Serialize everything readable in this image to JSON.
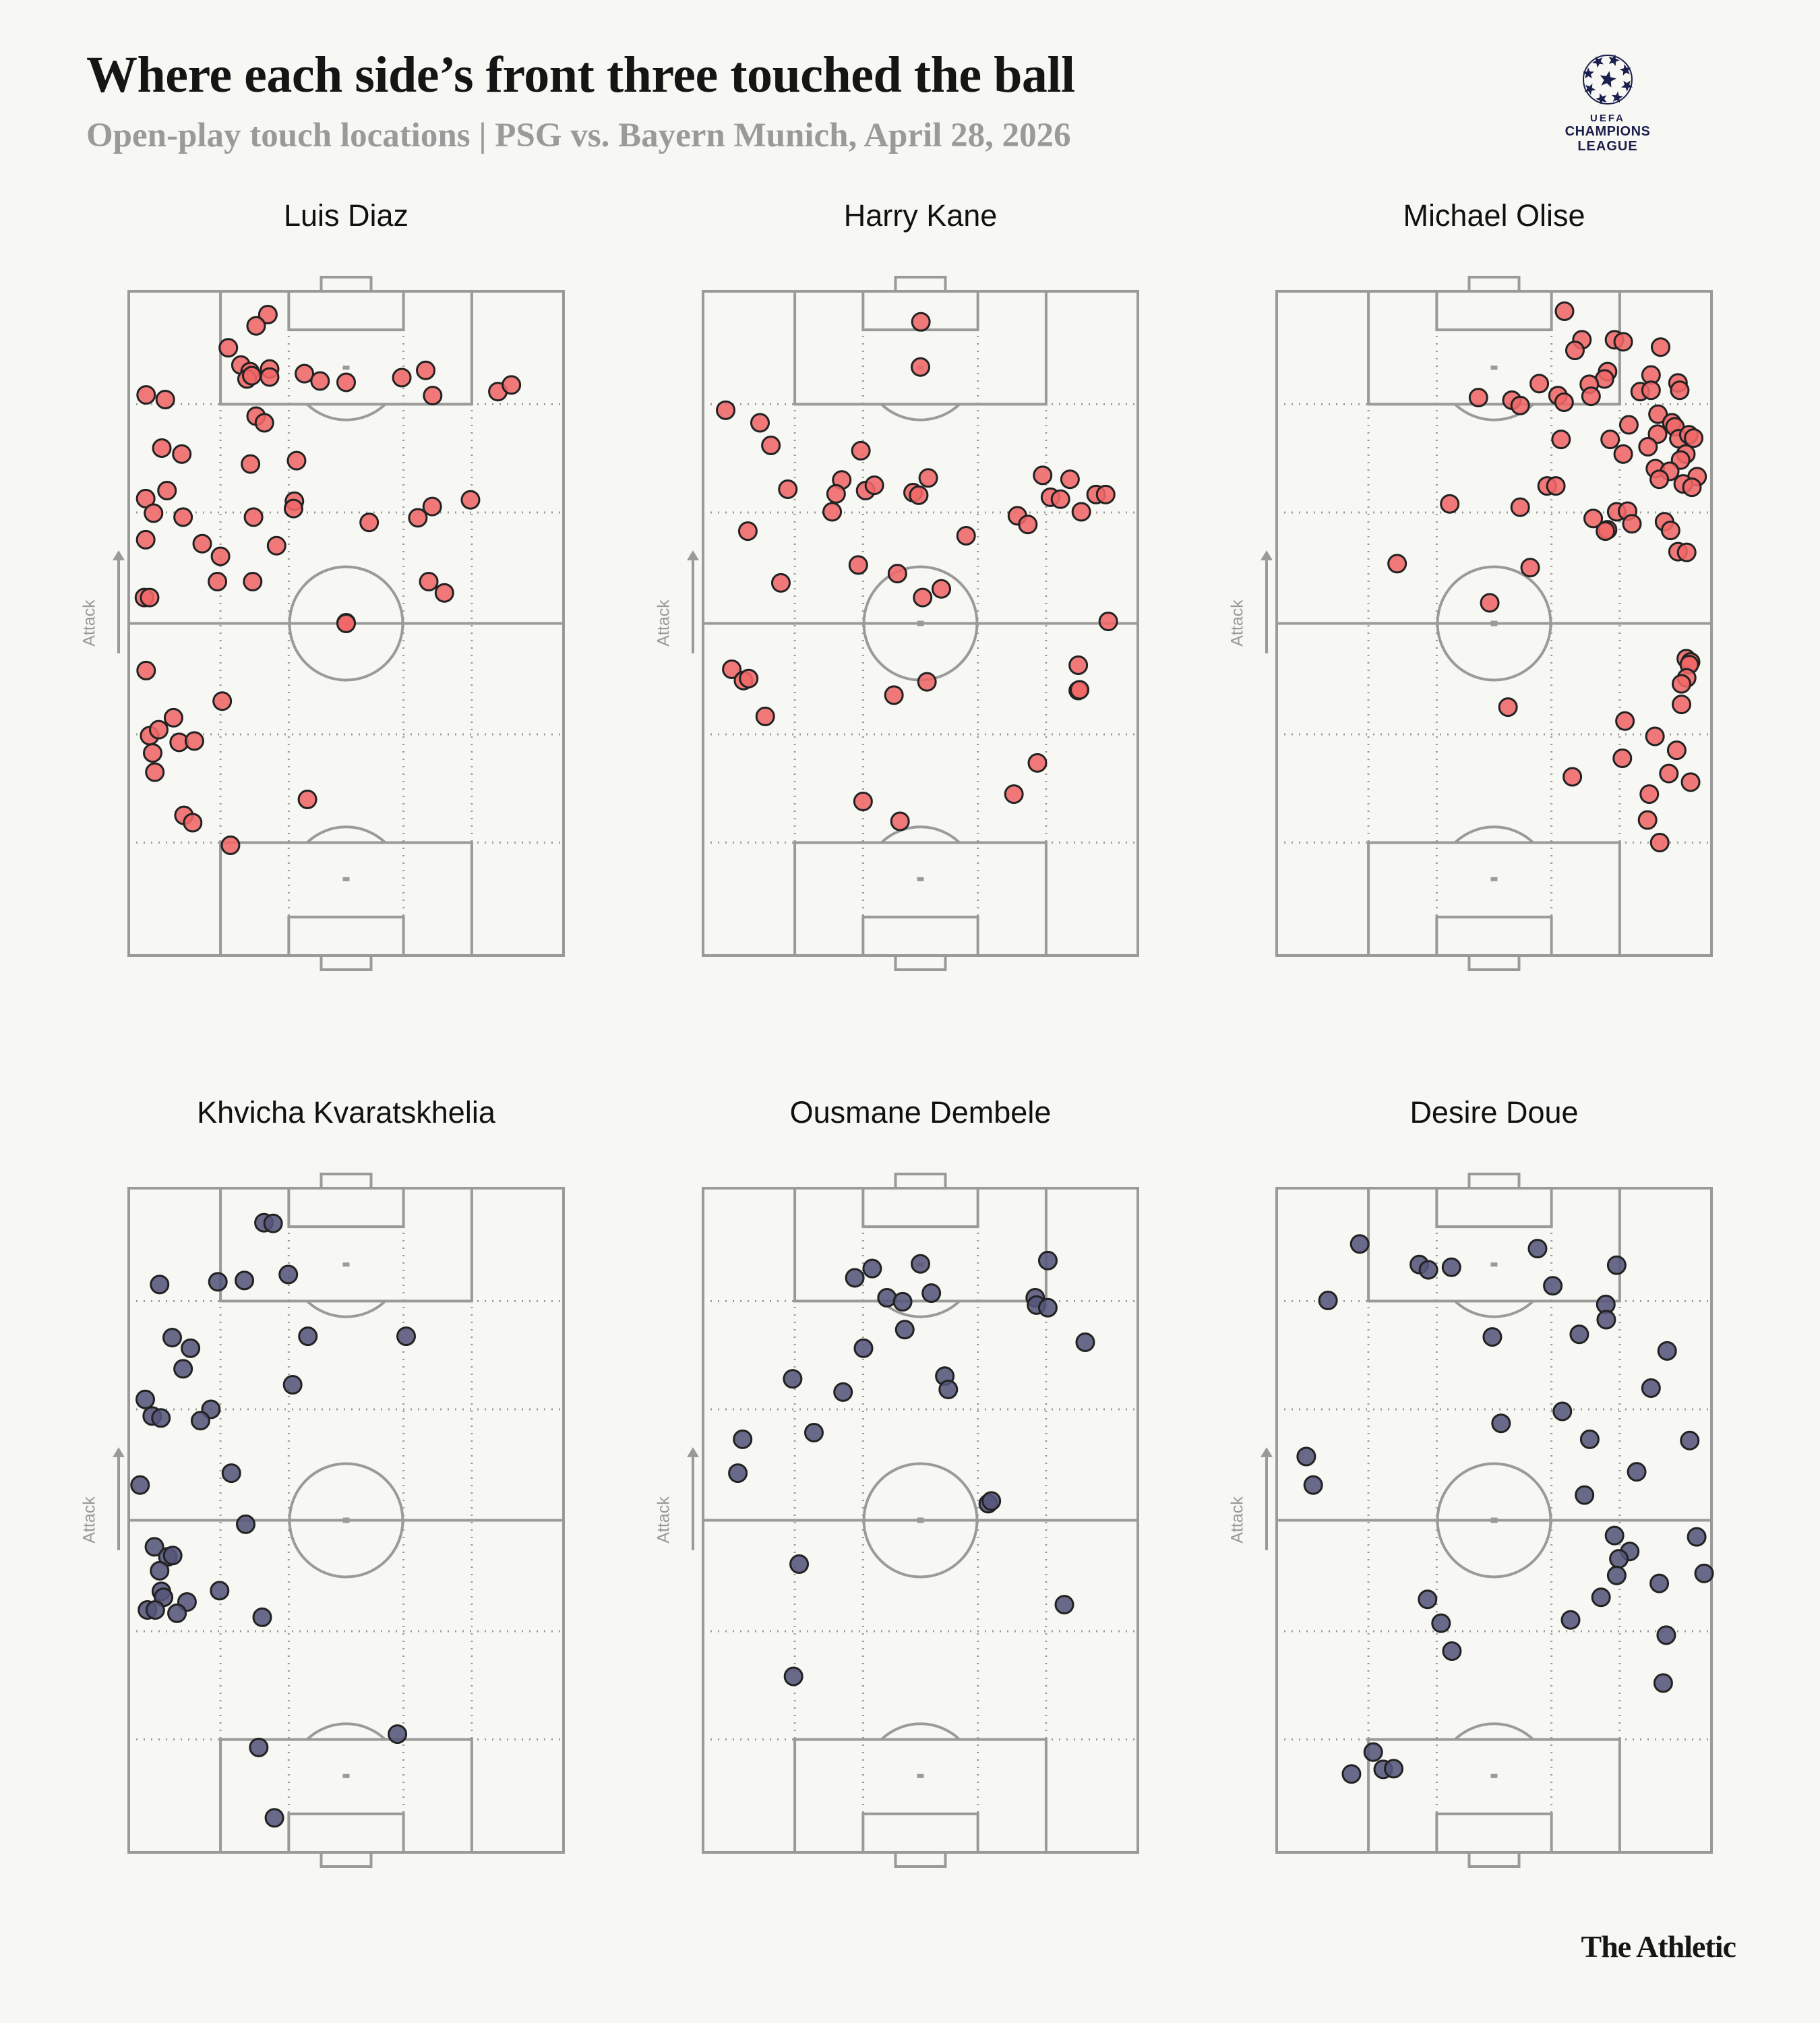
{
  "header": {
    "title": "Where each side’s front three touched the ball",
    "subtitle": "Open-play touch locations | PSG vs. Bayern Munich, April 28, 2026"
  },
  "logo": {
    "uefa": "UEFA",
    "line1": "CHAMPIONS",
    "line2": "LEAGUE",
    "color": "#1b1f4b"
  },
  "footer": {
    "brand": "The Athletic"
  },
  "attack_label": "Attack",
  "colors": {
    "bayern": "#f06767",
    "psg": "#55557a",
    "pitch_lines": "#9a9a9a",
    "marker_edge": "#222222"
  },
  "chart_data": [
    {
      "type": "scatter",
      "title": "Luis Diaz",
      "color": "#f06767",
      "xlim": [
        0,
        100
      ],
      "ylim": [
        0,
        100
      ],
      "x": [
        32.0,
        29.3,
        22.9,
        25.8,
        27.9,
        27.2,
        28.3,
        32.4,
        32.4,
        40.4,
        44.0,
        50.0,
        62.8,
        68.3,
        69.9,
        84.9,
        88.0,
        4.0,
        8.4,
        29.3,
        31.2,
        7.6,
        12.2,
        28.0,
        38.6,
        8.8,
        3.9,
        5.7,
        12.5,
        28.7,
        38.1,
        37.9,
        55.3,
        66.5,
        69.8,
        78.6,
        3.9,
        16.9,
        21.1,
        34.0,
        20.4,
        28.5,
        3.6,
        4.8,
        69.0,
        72.6,
        50.0,
        50.0,
        4.0,
        21.5,
        10.3,
        4.8,
        6.9,
        11.6,
        15.1,
        5.5,
        6.0,
        41.1,
        12.7,
        14.7,
        23.4
      ],
      "y": [
        96.5,
        94.8,
        91.5,
        88.9,
        87.9,
        86.8,
        87.3,
        88.3,
        87.1,
        87.6,
        86.5,
        86.3,
        87.0,
        88.1,
        84.3,
        84.9,
        85.9,
        84.4,
        83.7,
        81.2,
        80.2,
        76.4,
        75.5,
        74.0,
        74.5,
        70.0,
        68.8,
        66.6,
        66.0,
        66.0,
        68.4,
        67.3,
        65.2,
        65.9,
        67.6,
        68.6,
        62.6,
        62.0,
        60.1,
        61.7,
        56.3,
        56.3,
        53.9,
        53.9,
        56.3,
        54.6,
        50.1,
        50.0,
        42.9,
        38.3,
        35.8,
        33.1,
        34.0,
        32.1,
        32.3,
        30.5,
        27.6,
        23.5,
        21.1,
        20.0,
        16.6
      ]
    },
    {
      "type": "scatter",
      "title": "Harry Kane",
      "color": "#f06767",
      "xlim": [
        0,
        100
      ],
      "ylim": [
        0,
        100
      ],
      "x": [
        50.1,
        50.0,
        5.2,
        13.1,
        15.6,
        36.3,
        19.5,
        31.9,
        30.6,
        37.4,
        39.4,
        29.7,
        48.3,
        49.6,
        51.8,
        78.1,
        84.4,
        79.9,
        82.2,
        90.4,
        92.6,
        87.0,
        72.3,
        74.7,
        60.5,
        10.3,
        35.7,
        17.9,
        44.7,
        54.8,
        50.5,
        93.2,
        6.6,
        9.3,
        10.5,
        14.3,
        51.5,
        43.9,
        86.3,
        86.3,
        86.6,
        76.9,
        71.5,
        36.8,
        45.3
      ],
      "y": [
        95.4,
        88.6,
        82.1,
        80.2,
        76.8,
        76.0,
        70.2,
        71.6,
        69.5,
        70.0,
        70.8,
        66.8,
        69.7,
        69.3,
        71.9,
        72.3,
        71.7,
        69.0,
        68.7,
        69.4,
        69.4,
        66.8,
        66.2,
        64.9,
        63.2,
        63.9,
        58.8,
        56.1,
        57.5,
        55.2,
        53.9,
        50.3,
        43.1,
        41.4,
        41.7,
        36.0,
        41.2,
        39.2,
        43.7,
        39.9,
        40.0,
        29.0,
        24.3,
        23.2,
        20.2
      ]
    },
    {
      "type": "scatter",
      "title": "Michael Olise",
      "color": "#f06767",
      "xlim": [
        0,
        100
      ],
      "ylim": [
        0,
        100
      ],
      "x": [
        66.2,
        70.2,
        68.6,
        77.7,
        79.7,
        88.3,
        76.1,
        75.4,
        71.9,
        72.3,
        60.4,
        46.4,
        54.1,
        56.0,
        64.7,
        66.1,
        86.1,
        83.6,
        86.1,
        92.3,
        92.7,
        87.7,
        81.0,
        90.9,
        91.6,
        65.4,
        76.7,
        87.6,
        85.4,
        79.7,
        92.5,
        94.8,
        95.9,
        94.1,
        92.9,
        87.1,
        90.4,
        88.0,
        96.7,
        93.5,
        95.5,
        62.2,
        64.2,
        39.8,
        56.0,
        72.8,
        78.2,
        80.7,
        81.7,
        76.1,
        75.6,
        89.2,
        90.6,
        92.3,
        94.3,
        27.7,
        58.3,
        49.0,
        94.2,
        95.2,
        94.9,
        94.3,
        93.1,
        93.1,
        53.2,
        80.1,
        87.0,
        92.0,
        79.5,
        90.2,
        95.2,
        68.0,
        85.7,
        85.3,
        88.1
      ],
      "y": [
        97.0,
        92.7,
        91.1,
        92.7,
        92.4,
        91.6,
        87.9,
        86.8,
        86.0,
        84.2,
        86.1,
        84.0,
        83.6,
        82.8,
        84.3,
        83.3,
        87.4,
        84.9,
        85.1,
        86.2,
        85.1,
        81.5,
        79.9,
        80.2,
        79.6,
        77.7,
        77.7,
        78.5,
        76.6,
        75.5,
        77.8,
        78.4,
        77.9,
        75.5,
        74.6,
        73.3,
        72.9,
        71.7,
        72.1,
        71.0,
        70.5,
        70.7,
        70.7,
        68.0,
        67.5,
        65.8,
        66.8,
        66.9,
        65.0,
        64.1,
        63.9,
        65.3,
        64.0,
        60.8,
        60.7,
        59.0,
        58.4,
        53.1,
        44.7,
        44.2,
        43.8,
        41.8,
        40.9,
        37.8,
        37.4,
        35.3,
        33.0,
        30.9,
        29.7,
        27.4,
        26.1,
        26.9,
        24.3,
        20.4,
        17.0
      ]
    },
    {
      "type": "scatter",
      "title": "Khvicha Kvaratskhelia",
      "color": "#55557a",
      "xlim": [
        0,
        100
      ],
      "ylim": [
        0,
        100
      ],
      "x": [
        31.1,
        33.2,
        7.1,
        20.5,
        26.6,
        36.7,
        10.0,
        14.2,
        12.5,
        41.2,
        63.8,
        37.7,
        3.8,
        5.4,
        7.4,
        18.9,
        16.5,
        23.6,
        2.6,
        26.9,
        5.9,
        9.0,
        10.1,
        7.1,
        20.9,
        7.5,
        8.0,
        13.4,
        4.3,
        6.1,
        11.1,
        30.7,
        61.8,
        29.9,
        33.5
      ],
      "y": [
        94.8,
        94.7,
        85.5,
        85.9,
        86.1,
        87.0,
        77.5,
        75.9,
        72.8,
        77.7,
        77.7,
        70.4,
        68.2,
        65.7,
        65.4,
        66.7,
        65.0,
        57.1,
        55.3,
        49.4,
        46.0,
        44.5,
        44.7,
        42.4,
        39.4,
        39.3,
        38.4,
        37.7,
        36.5,
        36.5,
        36.0,
        35.4,
        17.8,
        15.8,
        5.2
      ]
    },
    {
      "type": "scatter",
      "title": "Ousmane Dembele",
      "color": "#55557a",
      "xlim": [
        0,
        100
      ],
      "ylim": [
        0,
        100
      ],
      "x": [
        50.0,
        38.9,
        34.9,
        42.3,
        45.9,
        52.5,
        79.3,
        76.4,
        76.7,
        79.3,
        46.4,
        87.9,
        36.9,
        20.6,
        32.2,
        55.6,
        56.4,
        9.1,
        25.5,
        8.0,
        65.6,
        66.3,
        22.1,
        83.1,
        20.8
      ],
      "y": [
        88.6,
        87.9,
        86.5,
        83.5,
        82.9,
        84.2,
        89.1,
        83.5,
        82.4,
        82.0,
        78.7,
        76.8,
        75.9,
        71.3,
        69.3,
        71.7,
        69.7,
        62.2,
        63.2,
        57.1,
        52.5,
        52.9,
        43.4,
        37.3,
        26.5
      ]
    },
    {
      "type": "scatter",
      "title": "Desire Doue",
      "color": "#55557a",
      "xlim": [
        0,
        100
      ],
      "ylim": [
        0,
        100
      ],
      "x": [
        19.1,
        32.8,
        34.9,
        40.2,
        60.0,
        63.5,
        78.2,
        11.8,
        75.7,
        75.8,
        49.6,
        69.6,
        89.8,
        86.1,
        65.7,
        51.6,
        72.0,
        95.0,
        82.8,
        6.8,
        8.4,
        70.8,
        77.7,
        96.6,
        81.2,
        78.7,
        78.2,
        98.3,
        88.0,
        74.6,
        67.6,
        34.7,
        37.8,
        40.3,
        89.6,
        88.9,
        22.2,
        24.5,
        26.9,
        17.2
      ],
      "y": [
        91.6,
        88.5,
        87.7,
        88.1,
        90.9,
        85.3,
        88.4,
        83.1,
        82.5,
        80.2,
        77.6,
        78.0,
        75.5,
        69.9,
        66.4,
        64.6,
        62.2,
        62.0,
        57.3,
        59.6,
        55.3,
        53.8,
        47.7,
        47.5,
        45.3,
        44.2,
        41.7,
        42.0,
        40.5,
        38.4,
        35.0,
        38.1,
        34.5,
        30.3,
        32.7,
        25.5,
        15.1,
        12.5,
        12.6,
        11.8
      ]
    }
  ]
}
